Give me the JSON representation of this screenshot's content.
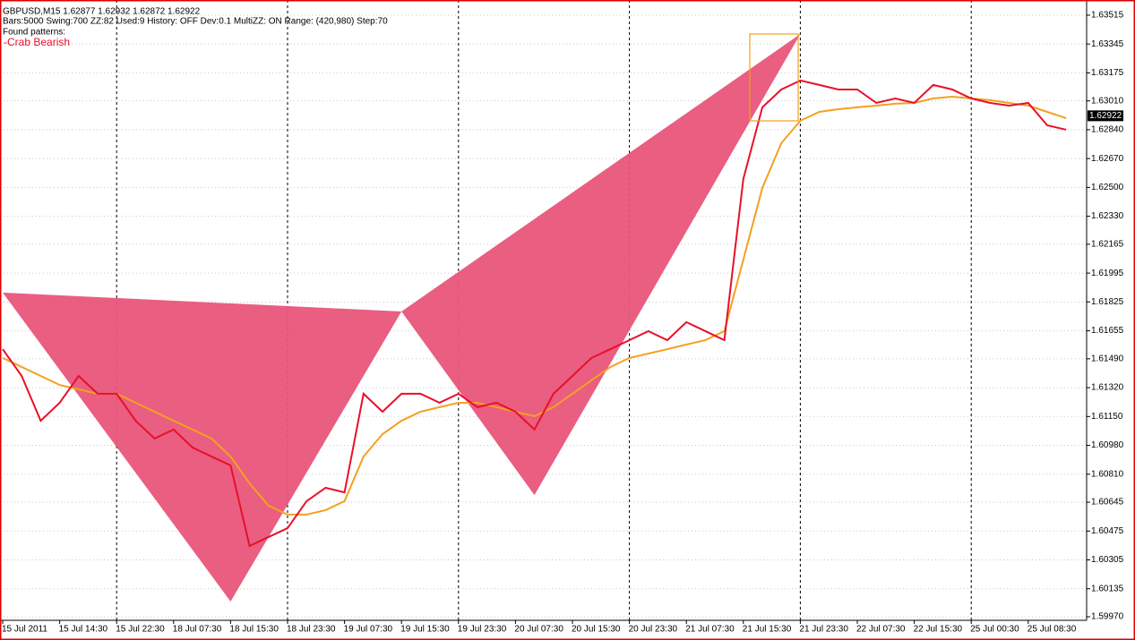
{
  "chart_data": {
    "type": "line",
    "header": [
      "GBPUSD,M15  1.62877 1.62932 1.62872 1.62922",
      "Bars:5000  Swing:700  ZZ:82  Used:9  History: OFF Dev:0.1  MultiZZ: ON  Range: (420,980)  Step:70",
      "Found patterns:"
    ],
    "pattern_label": "-Crab Bearish",
    "categories": [
      "15 Jul 2011",
      null,
      null,
      "15 Jul 14:30",
      null,
      null,
      "15 Jul 22:30",
      null,
      null,
      "18 Jul 07:30",
      null,
      null,
      "18 Jul 15:30",
      null,
      null,
      "18 Jul 23:30",
      null,
      null,
      "19 Jul 07:30",
      null,
      null,
      "19 Jul 15:30",
      null,
      null,
      "19 Jul 23:30",
      null,
      null,
      "20 Jul 07:30",
      null,
      null,
      "20 Jul 15:30",
      null,
      null,
      "20 Jul 23:30",
      null,
      null,
      "21 Jul 07:30",
      null,
      null,
      "21 Jul 15:30",
      null,
      null,
      "21 Jul 23:30",
      null,
      null,
      "22 Jul 07:30",
      null,
      null,
      "22 Jul 15:30",
      null,
      null,
      "25 Jul 00:30",
      null,
      null,
      "25 Jul 08:30",
      null,
      null
    ],
    "series": [
      {
        "color": "#f5a020",
        "values": [
          1.61495,
          1.61442,
          1.61389,
          1.61336,
          1.6131,
          1.61284,
          1.61284,
          1.61231,
          1.61178,
          1.61125,
          1.61073,
          1.6102,
          1.60914,
          1.60756,
          1.60624,
          1.60572,
          1.60572,
          1.60598,
          1.60651,
          1.60914,
          1.61046,
          1.61125,
          1.61178,
          1.61205,
          1.61231,
          1.61231,
          1.61205,
          1.61178,
          1.61152,
          1.61205,
          1.61284,
          1.61363,
          1.61442,
          1.61495,
          1.61521,
          1.61547,
          1.61574,
          1.616,
          1.61653,
          1.62075,
          1.62497,
          1.62761,
          1.62893,
          1.62945,
          1.62961,
          1.62972,
          1.62982,
          1.62993,
          1.62998,
          1.63024,
          1.63035,
          1.63024,
          1.63014,
          1.62998,
          1.62982,
          1.62945,
          1.62908
        ]
      },
      {
        "color": "#e8102a",
        "values": [
          1.61547,
          1.61389,
          1.61125,
          1.61231,
          1.61389,
          1.61284,
          1.61284,
          1.61125,
          1.6102,
          1.61073,
          1.60967,
          1.60914,
          1.60862,
          1.60387,
          1.6044,
          1.60492,
          1.60651,
          1.6073,
          1.60703,
          1.61284,
          1.61178,
          1.61284,
          1.61284,
          1.61231,
          1.61284,
          1.61205,
          1.61231,
          1.61178,
          1.61073,
          1.61284,
          1.61389,
          1.61495,
          1.61547,
          1.616,
          1.61653,
          1.616,
          1.61706,
          1.61653,
          1.616,
          1.6255,
          1.62972,
          1.63077,
          1.6313,
          1.63104,
          1.63077,
          1.63077,
          1.62998,
          1.63024,
          1.62998,
          1.63104,
          1.63077,
          1.63024,
          1.62998,
          1.62982,
          1.62998,
          1.62866,
          1.6284
        ]
      }
    ],
    "pattern": {
      "color": "#e8557a",
      "values": [
        1.6188,
        null,
        null,
        null,
        null,
        null,
        null,
        null,
        null,
        null,
        null,
        null,
        1.6006,
        null,
        null,
        null,
        null,
        null,
        null,
        null,
        null,
        1.61769,
        null,
        null,
        null,
        null,
        null,
        null,
        1.60687,
        null,
        null,
        null,
        null,
        null,
        null,
        null,
        null,
        null,
        null,
        null,
        null,
        null,
        1.63404,
        null,
        null,
        null,
        null,
        null,
        null,
        null,
        null,
        null,
        null,
        null,
        null,
        null,
        null
      ]
    },
    "last_price": 1.62922,
    "ylim": [
      1.59949,
      1.63578
    ],
    "yticks": [
      {
        "value": 1.63515,
        "label": "1.63515"
      },
      {
        "value": 1.63345,
        "label": "1.63345"
      },
      {
        "value": 1.63175,
        "label": "1.63175"
      },
      {
        "value": 1.6301,
        "label": "1.63010"
      },
      {
        "value": 1.6284,
        "label": "1.62840"
      },
      {
        "value": 1.6267,
        "label": "1.62670"
      },
      {
        "value": 1.625,
        "label": "1.62500"
      },
      {
        "value": 1.6233,
        "label": "1.62330"
      },
      {
        "value": 1.62165,
        "label": "1.62165"
      },
      {
        "value": 1.61995,
        "label": "1.61995"
      },
      {
        "value": 1.61825,
        "label": "1.61825"
      },
      {
        "value": 1.61655,
        "label": "1.61655"
      },
      {
        "value": 1.6149,
        "label": "1.61490"
      },
      {
        "value": 1.6132,
        "label": "1.61320"
      },
      {
        "value": 1.6115,
        "label": "1.61150"
      },
      {
        "value": 1.6098,
        "label": "1.60980"
      },
      {
        "value": 1.6081,
        "label": "1.60810"
      },
      {
        "value": 1.60645,
        "label": "1.60645"
      },
      {
        "value": 1.60475,
        "label": "1.60475"
      },
      {
        "value": 1.60305,
        "label": "1.60305"
      },
      {
        "value": 1.60135,
        "label": "1.60135"
      },
      {
        "value": 1.5997,
        "label": "1.59970"
      }
    ],
    "grid": true
  }
}
